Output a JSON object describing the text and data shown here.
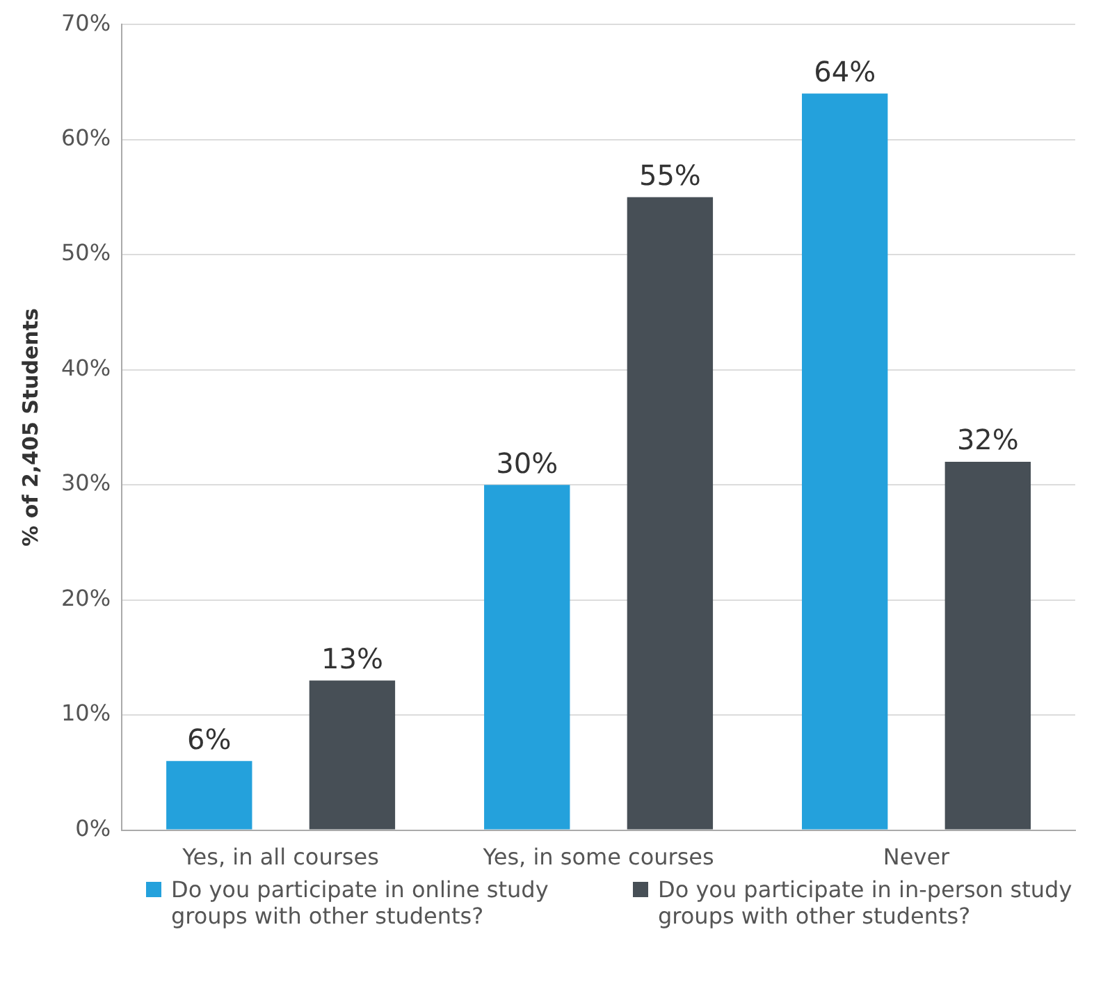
{
  "chart_data": {
    "type": "bar",
    "ylabel": "% of 2,405 Students",
    "categories": [
      "Yes, in all courses",
      "Yes, in some courses",
      "Never"
    ],
    "series": [
      {
        "name": "Do you participate in online study groups with other students?",
        "color": "#24a1dc",
        "values": [
          6,
          30,
          64
        ],
        "value_labels": [
          "6%",
          "30%",
          "64%"
        ]
      },
      {
        "name": "Do you participate in in-person study groups with other students?",
        "color": "#474f56",
        "values": [
          13,
          55,
          32
        ],
        "value_labels": [
          "13%",
          "55%",
          "32%"
        ]
      }
    ],
    "ylim": [
      0,
      70
    ],
    "yticks": [
      {
        "value": 0,
        "label": "0%"
      },
      {
        "value": 10,
        "label": "10%"
      },
      {
        "value": 20,
        "label": "20%"
      },
      {
        "value": 30,
        "label": "30%"
      },
      {
        "value": 40,
        "label": "40%"
      },
      {
        "value": 50,
        "label": "50%"
      },
      {
        "value": 60,
        "label": "60%"
      },
      {
        "value": 70,
        "label": "70%"
      }
    ],
    "grid": "y",
    "legend": "bottom"
  }
}
